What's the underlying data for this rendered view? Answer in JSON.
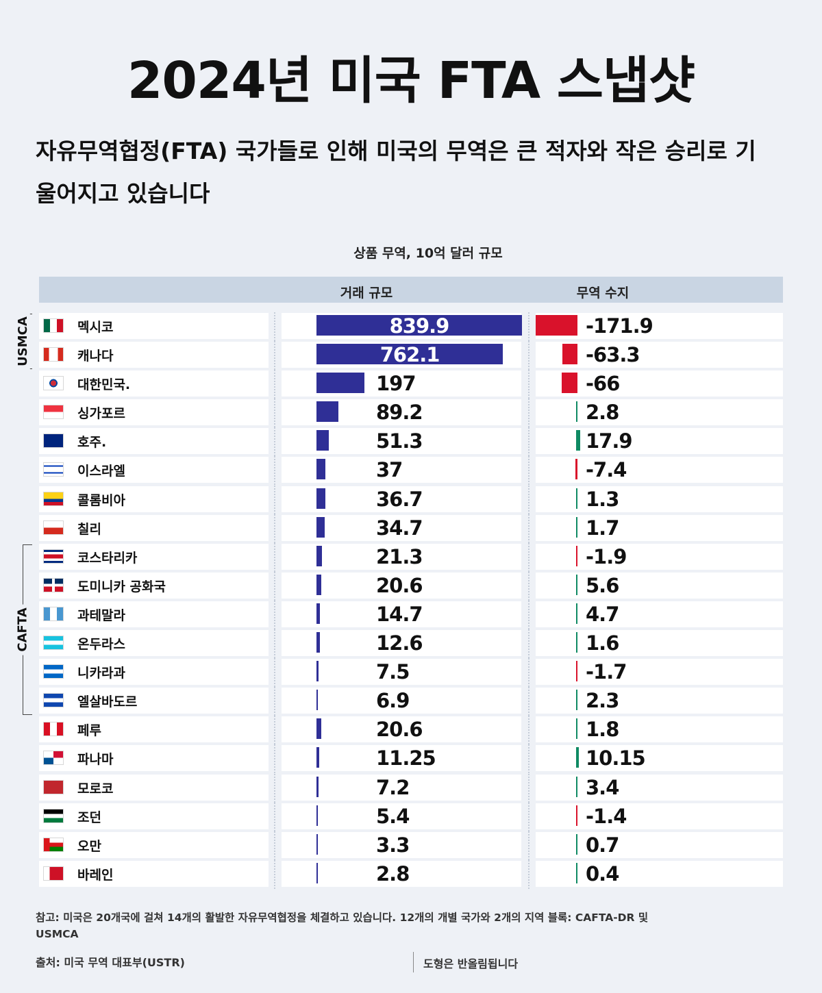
{
  "title": "2024년 미국 FTA 스냅샷",
  "subtitle": "자유무역협정(FTA) 국가들로 인해 미국의 무역은 큰 적자와 작은 승리로 기울어지고 있습니다",
  "units_label": "상품 무역, 10억 달러 규모",
  "columns": {
    "trade_size": "거래 규모",
    "trade_balance": "무역 수지"
  },
  "groups": [
    {
      "label": "USMCA",
      "first_row": 0,
      "last_row": 1
    },
    {
      "label": "CAFTA",
      "first_row": 8,
      "last_row": 13
    }
  ],
  "colors": {
    "bar": "#2f2f96",
    "deficit": "#d9122b",
    "surplus": "#0f8a63",
    "background": "#eef1f6",
    "header": "#c9d5e3"
  },
  "chart_data": {
    "type": "bar",
    "categories": [
      "멕시코",
      "캐나다",
      "대한민국.",
      "싱가포르",
      "호주.",
      "이스라엘",
      "콜롬비아",
      "칠리",
      "코스타리카",
      "도미니카 공화국",
      "과테말라",
      "온두라스",
      "니카라과",
      "엘살바도르",
      "페루",
      "파나마",
      "모로코",
      "조던",
      "오만",
      "바레인"
    ],
    "trade_size_labels": [
      "839.9",
      "762.1",
      "197",
      "89.2",
      "51.3",
      "37",
      "36.7",
      "34.7",
      "21.3",
      "20.6",
      "14.7",
      "12.6",
      "7.5",
      "6.9",
      "20.6",
      "11.25",
      "7.2",
      "5.4",
      "3.3",
      "2.8"
    ],
    "trade_balance_labels": [
      "-171.9",
      "-63.3",
      "-66",
      "2.8",
      "17.9",
      "-7.4",
      "1.3",
      "1.7",
      "-1.9",
      "5.6",
      "4.7",
      "1.6",
      "-1.7",
      "2.3",
      "1.8",
      "10.15",
      "3.4",
      "-1.4",
      "0.7",
      "0.4"
    ],
    "series": [
      {
        "name": "거래 규모",
        "values": [
          839.9,
          762.1,
          197,
          89.2,
          51.3,
          37,
          36.7,
          34.7,
          21.3,
          20.6,
          14.7,
          12.6,
          7.5,
          6.9,
          20.6,
          11.25,
          7.2,
          5.4,
          3.3,
          2.8
        ]
      },
      {
        "name": "무역 수지",
        "values": [
          -171.9,
          -63.3,
          -66,
          2.8,
          17.9,
          -7.4,
          1.3,
          1.7,
          -1.9,
          5.6,
          4.7,
          1.6,
          -1.7,
          2.3,
          1.8,
          10.15,
          3.4,
          -1.4,
          0.7,
          0.4
        ]
      }
    ],
    "flags": [
      "mexico-flag-icon",
      "canada-flag-icon",
      "south-korea-flag-icon",
      "singapore-flag-icon",
      "australia-flag-icon",
      "israel-flag-icon",
      "colombia-flag-icon",
      "chile-flag-icon",
      "costa-rica-flag-icon",
      "dominican-republic-flag-icon",
      "guatemala-flag-icon",
      "honduras-flag-icon",
      "nicaragua-flag-icon",
      "el-salvador-flag-icon",
      "peru-flag-icon",
      "panama-flag-icon",
      "morocco-flag-icon",
      "jordan-flag-icon",
      "oman-flag-icon",
      "bahrain-flag-icon"
    ]
  },
  "footnote": "참고: 미국은 20개국에 걸쳐 14개의 활발한 자유무역협정을 체결하고 있습니다. 12개의 개별 국가와 2개의 지역 블록: CAFTA-DR 및 USMCA",
  "source": "출처: 미국 무역 대표부(USTR)",
  "rounding_note": "도형은 반올림됩니다"
}
